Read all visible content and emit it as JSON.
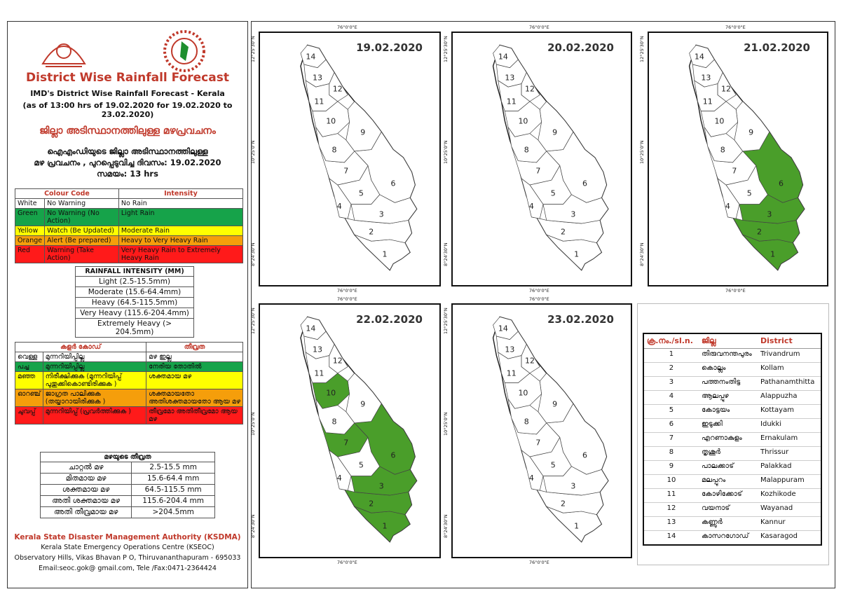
{
  "left": {
    "title": "District Wise Rainfall Forecast",
    "subtitle1": "IMD's District Wise Rainfall Forecast - Kerala",
    "subtitle2": "(as of 13:00 hrs of 19.02.2020  for 19.02.2020  to 23.02.2020)",
    "mal_title": "ജില്ലാ അടിസ്ഥാനത്തിലുള്ള  മഴപ്രവചനം",
    "mal_line1": "ഐഎംഡിയുടെ ജില്ലാ    അടിസ്ഥാനത്തിലുള്ള",
    "mal_line2": "മഴ പ്രവചനം , പുറപ്പെടുവിച്ച   ദിവസം: 19.02.2020",
    "mal_line3": "സമയം: 13 hrs",
    "colour_head": {
      "code": "Colour Code",
      "intensity": "Intensity"
    },
    "colour_rows": [
      {
        "colour": "White",
        "code": "No Warning",
        "intensity": "No Rain",
        "cls": ""
      },
      {
        "colour": "Green",
        "code": "No Warning (No Action)",
        "intensity": "Light Rain",
        "cls": "g"
      },
      {
        "colour": "Yellow",
        "code": "Watch (Be Updated)",
        "intensity": "Moderate Rain",
        "cls": "y"
      },
      {
        "colour": "Orange",
        "code": "Alert (Be prepared)",
        "intensity": "Heavy to Very Heavy Rain",
        "cls": "o"
      },
      {
        "colour": "Red",
        "code": "Warning (Take Action)",
        "intensity": "Very Heavy Rain to Extremely Heavy Rain",
        "cls": "r"
      }
    ],
    "mm_head": "RAINFALL INTENSITY (MM)",
    "mm_rows": [
      "Light (2.5-15.5mm)",
      "Moderate (15.6-64.4mm)",
      "Heavy (64.5-115.5mm)",
      "Very Heavy (115.6-204.4mm)",
      "Extremely Heavy (> 204.5mm)"
    ],
    "mal_colour_head": {
      "code": "കളർ കോഡ്",
      "intensity": "തീവ്രത"
    },
    "mal_colour_rows": [
      {
        "colour": "വെള്ള",
        "code": "മുന്നറിയിപ്പില്ല",
        "intensity": "മഴ ഇല്ല",
        "cls": ""
      },
      {
        "colour": "പച്ച",
        "code": "മുന്നറിയിപ്പില്ല",
        "intensity": "നേരിയ തോതിൽ",
        "cls": "g"
      },
      {
        "colour": "മഞ്ഞ",
        "code": "നിരീക്ഷിക്കുക (മുന്നറിയിപ്പ് പുതുക്കികൊണ്ടിരിക്കുക )",
        "intensity": "ശക്തമായ മഴ",
        "cls": "y"
      },
      {
        "colour": "ഓറഞ്ച്",
        "code": "ജാഗ്രത പാലിക്കുക (തയ്യാറായിരിക്കുക )",
        "intensity": "ശക്തമായതോ അതിശക്തമായതോ ആയ മഴ",
        "cls": "o"
      },
      {
        "colour": "ചുവപ്പ്",
        "code": "മുന്നറിയിപ്പ് (പ്രവർത്തിക്കുക )",
        "intensity": "തീവ്രമോ അതിതീവ്രമോ ആയ മഴ",
        "cls": "r"
      }
    ],
    "mal_mm_head": "മഴയുടെ തീവ്രത",
    "mal_mm_rows": [
      {
        "name": "ചാറ്റൽ മഴ",
        "range": "2.5-15.5 mm"
      },
      {
        "name": "മിതമായ മഴ",
        "range": "15.6-64.4 mm"
      },
      {
        "name": "ശക്തമായ മഴ",
        "range": "64.5-115.5 mm"
      },
      {
        "name": "അതി ശക്തമായ മഴ",
        "range": "115.6-204.4 mm"
      },
      {
        "name": "അതി തീവ്രമായ മഴ",
        "range": ">204.5mm"
      }
    ],
    "org": "Kerala State Disaster Management Authority (KSDMA)",
    "org2": "Kerala State Emergency Operations Centre (KSEOC)",
    "addr": "Observatory Hills, Vikas Bhavan P O, Thiruvananthapuram - 695033",
    "contact": "Email:seoc.gok@ gmail.com, Tele /Fax:0471-2364424"
  },
  "axis": {
    "lon": "76°0'0\"E",
    "lat_top": "12°25'30\"N",
    "lat_mid": "10°25'0\"N",
    "lat_bot": "8°24'30\"N"
  },
  "maps": [
    {
      "date": "19.02.2020",
      "green": []
    },
    {
      "date": "20.02.2020",
      "green": []
    },
    {
      "date": "21.02.2020",
      "green": [
        1,
        2,
        3,
        6
      ]
    },
    {
      "date": "22.02.2020",
      "green": [
        1,
        2,
        3,
        6,
        7,
        10
      ]
    },
    {
      "date": "23.02.2020",
      "green": []
    }
  ],
  "colors": {
    "green": "#4a9e2a"
  },
  "district_head": {
    "sl": "ക്ര.നം./sl.n.",
    "mal": "ജില്ല",
    "eng": "District"
  },
  "districts": [
    {
      "sl": "1",
      "mal": "തിരുവനന്തപുരം",
      "eng": "Trivandrum"
    },
    {
      "sl": "2",
      "mal": "കൊല്ലം",
      "eng": "Kollam"
    },
    {
      "sl": "3",
      "mal": "പത്തനംതിട്ട",
      "eng": "Pathanamthitta"
    },
    {
      "sl": "4",
      "mal": "ആലപ്പുഴ",
      "eng": "Alappuzha"
    },
    {
      "sl": "5",
      "mal": "കോട്ടയം",
      "eng": "Kottayam"
    },
    {
      "sl": "6",
      "mal": "ഇടുക്കി",
      "eng": "Idukki"
    },
    {
      "sl": "7",
      "mal": "എറണാകുളം",
      "eng": "Ernakulam"
    },
    {
      "sl": "8",
      "mal": "തൃശൂർ",
      "eng": "Thrissur"
    },
    {
      "sl": "9",
      "mal": "പാലക്കാട്",
      "eng": "Palakkad"
    },
    {
      "sl": "10",
      "mal": "മലപ്പുറം",
      "eng": "Malappuram"
    },
    {
      "sl": "11",
      "mal": "കോഴിക്കോട്",
      "eng": "Kozhikode"
    },
    {
      "sl": "12",
      "mal": "വയനാട്",
      "eng": "Wayanad"
    },
    {
      "sl": "13",
      "mal": "കണ്ണൂർ",
      "eng": "Kannur"
    },
    {
      "sl": "14",
      "mal": "കാസറഗോഡ്",
      "eng": "Kasaragod"
    }
  ]
}
